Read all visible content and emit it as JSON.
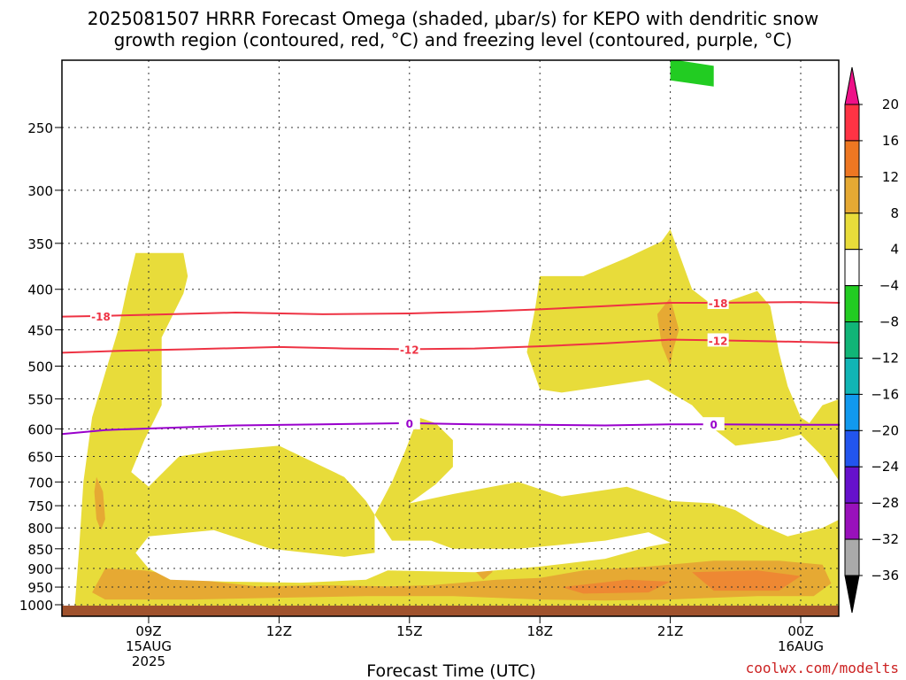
{
  "title_line1": "2025081507 HRRR Forecast Omega (shaded, μbar/s) for KEPO with dendritic snow",
  "title_line2": "growth region (contoured, red, °C) and freezing level (contoured, purple, °C)",
  "credit": "coolwx.com/modelts",
  "chart_data": {
    "type": "heatmap",
    "title": "2025081507 HRRR Forecast Omega (shaded, μbar/s) for KEPO with dendritic snow growth region (contoured, red, °C) and freezing level (contoured, purple, °C)",
    "xlabel": "Forecast Time (UTC)",
    "ylabel": "",
    "x_range_hours": [
      7,
      24.9
    ],
    "y_range_hPa": [
      1012,
      200
    ],
    "y_scale": "log-pressure",
    "grid": true,
    "x_ticks": [
      {
        "hour": 9,
        "lines": [
          "09Z",
          "15AUG",
          "2025"
        ]
      },
      {
        "hour": 12,
        "lines": [
          "12Z"
        ]
      },
      {
        "hour": 15,
        "lines": [
          "15Z"
        ]
      },
      {
        "hour": 18,
        "lines": [
          "18Z"
        ]
      },
      {
        "hour": 21,
        "lines": [
          "21Z"
        ]
      },
      {
        "hour": 24,
        "lines": [
          "00Z",
          "16AUG"
        ]
      }
    ],
    "y_ticks": [
      1000,
      950,
      900,
      850,
      800,
      750,
      700,
      650,
      600,
      550,
      500,
      450,
      400,
      350,
      300,
      250
    ],
    "colorbar": {
      "levels": [
        "20",
        "16",
        "12",
        "8",
        "4",
        "−4",
        "−8",
        "−12",
        "−16",
        "−20",
        "−24",
        "−28",
        "−32",
        "−36"
      ],
      "colors": [
        "#ff3344",
        "#ee7722",
        "#e6a933",
        "#e8dc3a",
        "#ffffff",
        "#22cc22",
        "#11b577",
        "#11b5b5",
        "#1199ee",
        "#2255ee",
        "#6611cc",
        "#9911bb",
        "#aaaaaa"
      ],
      "top_arrow_color": "#ee1188",
      "bottom_arrow_color": "#000000"
    },
    "contours": [
      {
        "name": "-18",
        "color": "#ee3344",
        "label_hours": [
          7.9,
          22.1
        ],
        "points": [
          [
            7.0,
            433
          ],
          [
            8.0,
            432
          ],
          [
            9.5,
            430
          ],
          [
            11.0,
            428
          ],
          [
            13.0,
            430
          ],
          [
            15.0,
            429
          ],
          [
            16.5,
            427
          ],
          [
            18.0,
            424
          ],
          [
            19.5,
            420
          ],
          [
            21.0,
            416
          ],
          [
            22.1,
            416
          ],
          [
            24.0,
            415
          ],
          [
            24.9,
            416
          ]
        ]
      },
      {
        "name": "-12",
        "color": "#ee3344",
        "label_hours": [
          15.0,
          22.1
        ],
        "points": [
          [
            7.0,
            481
          ],
          [
            8.5,
            478
          ],
          [
            10.0,
            476
          ],
          [
            12.0,
            473
          ],
          [
            13.5,
            475
          ],
          [
            15.0,
            476
          ],
          [
            16.5,
            475
          ],
          [
            18.0,
            472
          ],
          [
            19.5,
            468
          ],
          [
            21.0,
            463
          ],
          [
            22.1,
            464
          ],
          [
            24.0,
            466
          ],
          [
            24.9,
            467
          ]
        ]
      },
      {
        "name": "0",
        "color": "#9900cc",
        "label_hours": [
          15.0,
          22.0
        ],
        "points": [
          [
            7.0,
            609
          ],
          [
            8.0,
            602
          ],
          [
            9.5,
            598
          ],
          [
            11.0,
            594
          ],
          [
            13.0,
            592
          ],
          [
            15.0,
            590
          ],
          [
            16.5,
            592
          ],
          [
            18.0,
            593
          ],
          [
            19.5,
            594
          ],
          [
            21.0,
            592
          ],
          [
            22.0,
            592
          ],
          [
            24.0,
            593
          ],
          [
            24.9,
            593
          ]
        ]
      }
    ],
    "regions": [
      {
        "value_bin": "4",
        "color": "#e8dc3a",
        "points": [
          [
            7.3,
            1005
          ],
          [
            7.4,
            850
          ],
          [
            7.5,
            700
          ],
          [
            7.7,
            580
          ],
          [
            8.0,
            510
          ],
          [
            8.3,
            450
          ],
          [
            8.5,
            400
          ],
          [
            8.7,
            360
          ],
          [
            9.8,
            360
          ],
          [
            9.9,
            385
          ],
          [
            9.8,
            405
          ],
          [
            9.3,
            460
          ],
          [
            9.3,
            560
          ],
          [
            8.9,
            620
          ],
          [
            8.6,
            680
          ],
          [
            9.0,
            710
          ],
          [
            9.7,
            650
          ],
          [
            10.5,
            640
          ],
          [
            12.0,
            630
          ],
          [
            13.5,
            690
          ],
          [
            14.0,
            740
          ],
          [
            14.2,
            770
          ],
          [
            14.6,
            700
          ],
          [
            14.9,
            640
          ],
          [
            15.2,
            580
          ],
          [
            15.6,
            590
          ],
          [
            16.0,
            620
          ],
          [
            16.0,
            670
          ],
          [
            15.6,
            705
          ],
          [
            15.0,
            745
          ],
          [
            16.0,
            725
          ],
          [
            17.5,
            700
          ],
          [
            18.5,
            730
          ],
          [
            20.0,
            710
          ],
          [
            21.0,
            740
          ],
          [
            22.0,
            745
          ],
          [
            22.5,
            760
          ],
          [
            23.0,
            790
          ],
          [
            23.7,
            820
          ],
          [
            24.5,
            800
          ],
          [
            24.9,
            780
          ],
          [
            24.9,
            1005
          ],
          [
            22.0,
            1005
          ],
          [
            19.0,
            1005
          ],
          [
            16.0,
            1005
          ],
          [
            13.0,
            1005
          ],
          [
            10.0,
            1005
          ]
        ]
      },
      {
        "value_bin": "4",
        "color": "#e8dc3a",
        "points": [
          [
            18.0,
            535
          ],
          [
            17.7,
            480
          ],
          [
            17.9,
            420
          ],
          [
            18.0,
            385
          ],
          [
            19.0,
            385
          ],
          [
            20.0,
            365
          ],
          [
            20.8,
            348
          ],
          [
            21.0,
            336
          ],
          [
            21.5,
            400
          ],
          [
            22.0,
            420
          ],
          [
            23.0,
            402
          ],
          [
            23.3,
            420
          ],
          [
            23.5,
            480
          ],
          [
            23.7,
            530
          ],
          [
            24.0,
            580
          ],
          [
            24.2,
            590
          ],
          [
            24.5,
            560
          ],
          [
            24.9,
            550
          ],
          [
            24.9,
            700
          ],
          [
            24.5,
            650
          ],
          [
            24.0,
            610
          ],
          [
            23.5,
            620
          ],
          [
            22.5,
            630
          ],
          [
            22.0,
            600
          ],
          [
            21.5,
            560
          ],
          [
            20.5,
            520
          ],
          [
            19.5,
            530
          ],
          [
            18.5,
            540
          ]
        ]
      },
      {
        "value_bin": "8",
        "color": "#e6a933",
        "points": [
          [
            8.0,
            900
          ],
          [
            8.9,
            905
          ],
          [
            10.5,
            935
          ],
          [
            11.5,
            948
          ],
          [
            13.0,
            945
          ],
          [
            14.5,
            948
          ],
          [
            15.5,
            945
          ],
          [
            17.0,
            930
          ],
          [
            18.0,
            925
          ],
          [
            19.0,
            905
          ],
          [
            20.5,
            895
          ],
          [
            22.0,
            880
          ],
          [
            23.5,
            880
          ],
          [
            24.5,
            890
          ],
          [
            24.7,
            940
          ],
          [
            24.3,
            975
          ],
          [
            23.0,
            975
          ],
          [
            21.0,
            985
          ],
          [
            19.5,
            988
          ],
          [
            18.0,
            985
          ],
          [
            16.0,
            975
          ],
          [
            14.0,
            975
          ],
          [
            12.0,
            980
          ],
          [
            10.0,
            985
          ],
          [
            8.0,
            985
          ],
          [
            7.7,
            965
          ]
        ]
      },
      {
        "value_bin": "8",
        "color": "#e6a933",
        "points": [
          [
            7.8,
            690
          ],
          [
            7.95,
            720
          ],
          [
            8.0,
            780
          ],
          [
            7.9,
            805
          ],
          [
            7.8,
            780
          ],
          [
            7.75,
            720
          ]
        ]
      },
      {
        "value_bin": "8",
        "color": "#e6a933",
        "points": [
          [
            16.8,
            860
          ],
          [
            17.0,
            880
          ],
          [
            16.9,
            910
          ],
          [
            16.7,
            930
          ],
          [
            16.5,
            905
          ],
          [
            16.6,
            875
          ]
        ]
      },
      {
        "value_bin": "8",
        "color": "#e6a933",
        "points": [
          [
            21.0,
            410
          ],
          [
            21.2,
            450
          ],
          [
            21.05,
            480
          ],
          [
            21.0,
            500
          ],
          [
            20.8,
            470
          ],
          [
            20.7,
            430
          ]
        ]
      },
      {
        "value_bin": "12",
        "color": "#ee8833",
        "points": [
          [
            21.5,
            910
          ],
          [
            23.0,
            905
          ],
          [
            24.0,
            920
          ],
          [
            23.5,
            960
          ],
          [
            22.0,
            960
          ]
        ]
      },
      {
        "value_bin": "12",
        "color": "#ee8833",
        "points": [
          [
            18.5,
            950
          ],
          [
            20.0,
            930
          ],
          [
            21.0,
            935
          ],
          [
            20.5,
            965
          ],
          [
            19.0,
            968
          ]
        ]
      },
      {
        "value_bin": "−4",
        "color": "#22cc22",
        "points": [
          [
            21.0,
            205
          ],
          [
            22.0,
            209
          ],
          [
            22.0,
            222
          ],
          [
            21.0,
            218
          ]
        ]
      }
    ],
    "white_bands": [
      {
        "points": [
          [
            9.0,
            820
          ],
          [
            10.5,
            805
          ],
          [
            11.8,
            850
          ],
          [
            13.5,
            870
          ],
          [
            14.2,
            860
          ],
          [
            14.2,
            770
          ],
          [
            14.6,
            830
          ],
          [
            15.5,
            830
          ],
          [
            16.0,
            850
          ],
          [
            17.5,
            850
          ],
          [
            18.5,
            840
          ],
          [
            19.5,
            830
          ],
          [
            20.5,
            810
          ],
          [
            21.0,
            835
          ],
          [
            20.5,
            845
          ],
          [
            19.5,
            875
          ],
          [
            18.0,
            895
          ],
          [
            16.5,
            910
          ],
          [
            14.5,
            905
          ],
          [
            14.0,
            930
          ],
          [
            12.5,
            938
          ],
          [
            10.8,
            935
          ],
          [
            9.5,
            930
          ],
          [
            9.0,
            900
          ],
          [
            8.7,
            860
          ]
        ]
      }
    ],
    "ground_band_hPa": [
      1012,
      1030
    ]
  }
}
